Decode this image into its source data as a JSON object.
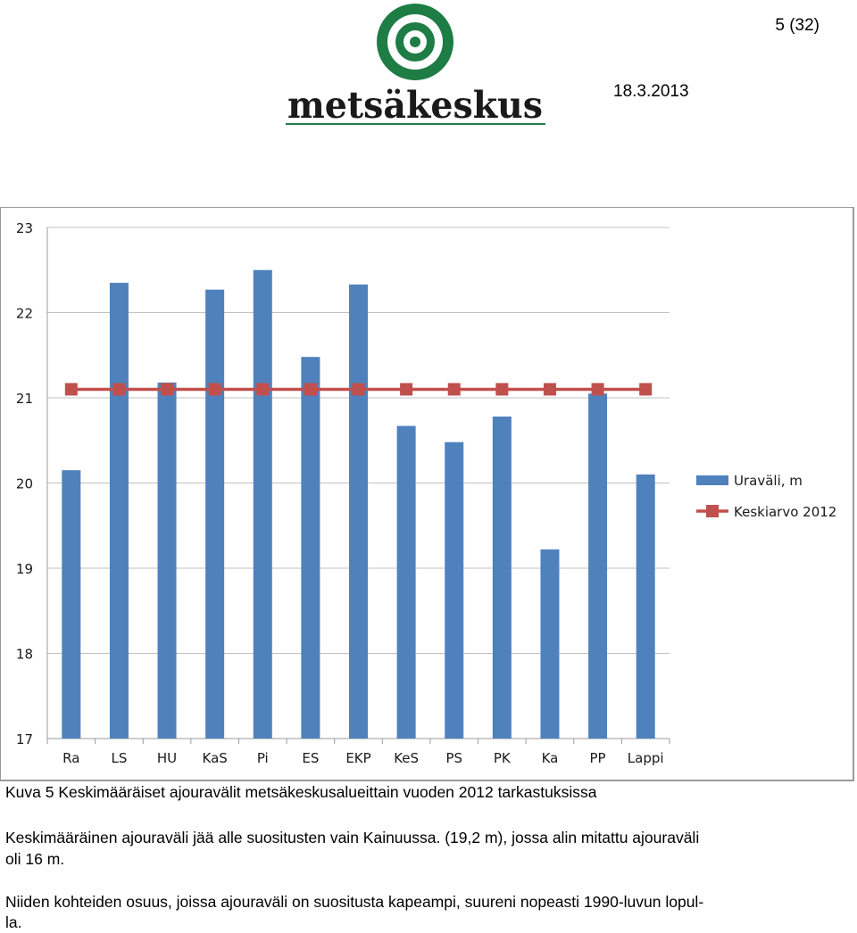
{
  "header": {
    "page_number": "5 (32)",
    "date": "18.3.2013",
    "logo_text": "metsäkeskus"
  },
  "chart_data": {
    "type": "bar",
    "categories": [
      "Ra",
      "LS",
      "HU",
      "KaS",
      "Pi",
      "ES",
      "EKP",
      "KeS",
      "PS",
      "PK",
      "Ka",
      "PP",
      "Lappi"
    ],
    "series": [
      {
        "name": "Uraväli, m",
        "type": "bar",
        "color": "#4f81bd",
        "values": [
          20.15,
          22.35,
          21.18,
          22.27,
          22.5,
          21.48,
          22.33,
          20.67,
          20.48,
          20.78,
          19.22,
          21.05,
          20.1
        ]
      },
      {
        "name": "Keskiarvo 2012",
        "type": "line",
        "color": "#c0504d",
        "values": [
          21.1,
          21.1,
          21.1,
          21.1,
          21.1,
          21.1,
          21.1,
          21.1,
          21.1,
          21.1,
          21.1,
          21.1,
          21.1
        ]
      }
    ],
    "ylim": [
      17,
      23
    ],
    "yticks": [
      "17",
      "18",
      "19",
      "20",
      "21",
      "22",
      "23"
    ],
    "grid": true,
    "legend": "right"
  },
  "caption": "Kuva 5 Keskimääräiset ajouravälit metsäkeskusalueittain vuoden 2012 tarkastuksissa",
  "body_text": {
    "para1_line1": "Keskimääräinen ajouraväli jää alle suositusten vain Kainuussa. (19,2 m), jossa alin mitattu ajouraväli",
    "para1_line2": "oli 16 m.",
    "para2_line1": "Niiden kohteiden osuus, joissa ajouraväli on suositusta kapeampi, suureni nopeasti 1990-luvun lopul-",
    "para2_line2": "la."
  }
}
